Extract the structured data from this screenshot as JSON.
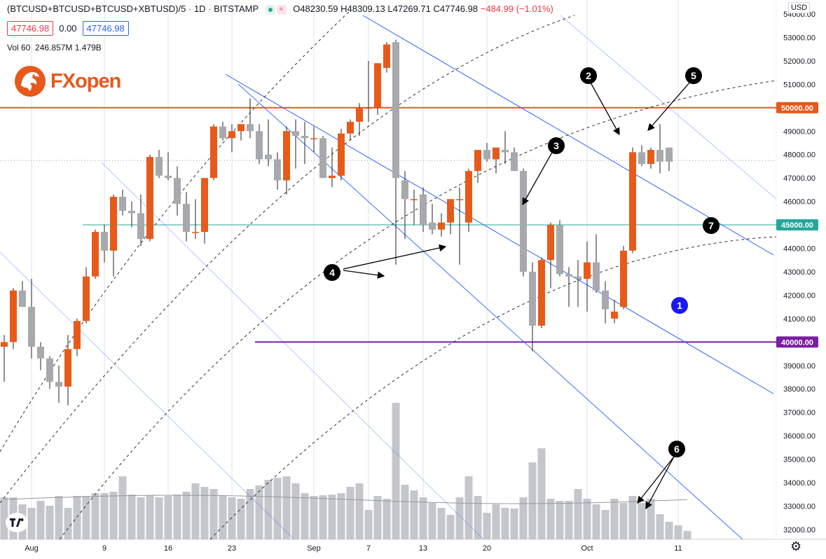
{
  "header": {
    "symbol": "(BTCUSD+BTCUSD+BTCUSD+XBTUSD)/5",
    "interval": "1D",
    "exchange": "BITSTAMP",
    "open": "O48230.59",
    "high": "H48309.13",
    "low": "L47269.71",
    "close": "C47746.98",
    "change": "−484.99 (−1.01%)",
    "bid": "47746.98",
    "spread": "0.00",
    "ask": "47746.98",
    "volume_label": "Vol 60",
    "volume_value": "246.857M",
    "volume_ma": "1.479B"
  },
  "logo": {
    "name_a": "FX",
    "name_b": "open"
  },
  "currency": "USD",
  "colors": {
    "up": "#e85a19",
    "down": "#a7a9ad",
    "channel": "#2962ff",
    "level_50k": "#e8581a",
    "level_45k": "#26a69a",
    "level_40k": "#7b1fa2"
  },
  "icons": [
    "tradingview-logo-icon",
    "settings-gear-icon"
  ],
  "chart_data": {
    "type": "candlestick",
    "y_range": [
      31500,
      54500
    ],
    "y_ticks": [
      "32000.00",
      "33000.00",
      "34000.00",
      "35000.00",
      "36000.00",
      "37000.00",
      "38000.00",
      "39000.00",
      "40000.00",
      "41000.00",
      "42000.00",
      "43000.00",
      "44000.00",
      "45000.00",
      "46000.00",
      "47000.00",
      "48000.00",
      "49000.00",
      "50000.00",
      "51000.00",
      "52000.00",
      "53000.00",
      "54000.00"
    ],
    "x_ticks": [
      {
        "label": "Aug",
        "i": 3
      },
      {
        "label": "9",
        "i": 11
      },
      {
        "label": "16",
        "i": 18
      },
      {
        "label": "23",
        "i": 25
      },
      {
        "label": "Sep",
        "i": 34
      },
      {
        "label": "7",
        "i": 40
      },
      {
        "label": "13",
        "i": 46
      },
      {
        "label": "20",
        "i": 53
      },
      {
        "label": "Oct",
        "i": 64
      },
      {
        "label": "11",
        "i": 74
      }
    ],
    "candles": [
      [
        39800,
        40300,
        38300,
        40000
      ],
      [
        40000,
        42300,
        39700,
        42200
      ],
      [
        42200,
        42600,
        41500,
        41500
      ],
      [
        41500,
        42700,
        39300,
        39800
      ],
      [
        39800,
        40000,
        38800,
        39300
      ],
      [
        39300,
        39400,
        38000,
        38300
      ],
      [
        38300,
        39000,
        37400,
        38100
      ],
      [
        38100,
        40300,
        37300,
        39700
      ],
      [
        39700,
        41000,
        39400,
        40900
      ],
      [
        40900,
        43200,
        40800,
        42800
      ],
      [
        42800,
        44800,
        42700,
        44700
      ],
      [
        44700,
        45000,
        43400,
        43900
      ],
      [
        43900,
        46300,
        42800,
        46200
      ],
      [
        46200,
        46500,
        45400,
        45600
      ],
      [
        45600,
        46000,
        44900,
        45500
      ],
      [
        45500,
        46300,
        44100,
        44400
      ],
      [
        44400,
        48000,
        44300,
        47900
      ],
      [
        47900,
        48200,
        47000,
        47100
      ],
      [
        47100,
        48100,
        46900,
        47000
      ],
      [
        47000,
        47500,
        45400,
        45900
      ],
      [
        45900,
        46400,
        44300,
        44700
      ],
      [
        44700,
        46100,
        44400,
        44700
      ],
      [
        44700,
        47000,
        44200,
        47000
      ],
      [
        47000,
        49300,
        46900,
        49200
      ],
      [
        49200,
        49400,
        48600,
        48700
      ],
      [
        48700,
        49300,
        48100,
        49000
      ],
      [
        49000,
        49200,
        48600,
        49300
      ],
      [
        49300,
        50400,
        48700,
        49000
      ],
      [
        49000,
        49300,
        47600,
        47800
      ],
      [
        48000,
        49500,
        47500,
        47800
      ],
      [
        47800,
        48100,
        46500,
        46900
      ],
      [
        46900,
        49200,
        46300,
        49000
      ],
      [
        49000,
        49500,
        47400,
        48800
      ],
      [
        48800,
        49400,
        47600,
        48700
      ],
      [
        48700,
        49200,
        48100,
        48700
      ],
      [
        48700,
        48800,
        47000,
        47000
      ],
      [
        47000,
        48300,
        46600,
        47100
      ],
      [
        47100,
        49100,
        46900,
        48900
      ],
      [
        48900,
        49500,
        48600,
        49400
      ],
      [
        49400,
        50200,
        48800,
        50000
      ],
      [
        50000,
        52000,
        49400,
        50000
      ],
      [
        50000,
        51900,
        49700,
        51900
      ],
      [
        51700,
        52800,
        51500,
        52700
      ],
      [
        52800,
        52900,
        43300,
        47000
      ],
      [
        46900,
        47300,
        44400,
        46100
      ],
      [
        46100,
        46500,
        45000,
        46100
      ],
      [
        46300,
        46600,
        44700,
        45000
      ],
      [
        45100,
        45900,
        44600,
        44800
      ],
      [
        44800,
        45500,
        44500,
        45100
      ],
      [
        45100,
        46100,
        44600,
        46100
      ],
      [
        46100,
        46600,
        43300,
        46100
      ],
      [
        45100,
        47400,
        44700,
        47300
      ],
      [
        47300,
        48100,
        46800,
        48200
      ],
      [
        48200,
        48500,
        47700,
        47800
      ],
      [
        47800,
        48300,
        47200,
        48300
      ],
      [
        48200,
        49000,
        47600,
        48100
      ],
      [
        48100,
        48300,
        47300,
        47300
      ],
      [
        47300,
        47400,
        42800,
        43000
      ],
      [
        43000,
        43400,
        39600,
        40700
      ],
      [
        40700,
        43600,
        40600,
        43500
      ],
      [
        43500,
        45100,
        42300,
        45000
      ],
      [
        45000,
        45200,
        42800,
        42900
      ],
      [
        42900,
        43200,
        41500,
        42800
      ],
      [
        42800,
        43500,
        41500,
        42700
      ],
      [
        42700,
        44300,
        41300,
        43400
      ],
      [
        43400,
        44600,
        42100,
        42200
      ],
      [
        42200,
        42600,
        40800,
        41400
      ],
      [
        41000,
        41800,
        40800,
        41300
      ],
      [
        41500,
        44100,
        41400,
        43900
      ],
      [
        43900,
        48300,
        43800,
        48100
      ],
      [
        48100,
        48400,
        47500,
        47600
      ],
      [
        47600,
        48300,
        47400,
        48200
      ],
      [
        48200,
        49300,
        47200,
        47700
      ],
      [
        48300,
        48300,
        47300,
        47700
      ]
    ],
    "volume_scale_note": "volume shown as relative bar heights only"
  },
  "levels": [
    {
      "name": "50k",
      "price": 50000,
      "label": "50000.00"
    },
    {
      "name": "45k",
      "price": 45000,
      "label": "45000.00"
    },
    {
      "name": "40k",
      "price": 40000,
      "label": "40000.00"
    }
  ],
  "annotations": [
    {
      "num": "1",
      "style": "blue"
    },
    {
      "num": "2",
      "style": "black"
    },
    {
      "num": "3",
      "style": "black"
    },
    {
      "num": "4",
      "style": "black"
    },
    {
      "num": "5",
      "style": "black"
    },
    {
      "num": "6",
      "style": "black"
    },
    {
      "num": "7",
      "style": "black"
    }
  ]
}
